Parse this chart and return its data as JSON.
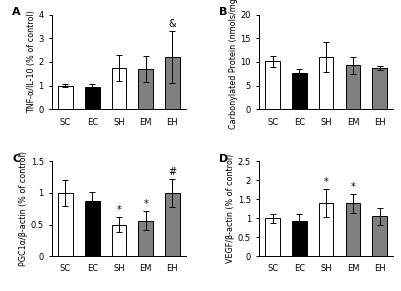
{
  "categories": [
    "SC",
    "EC",
    "SH",
    "EM",
    "EH"
  ],
  "panel_A": {
    "title": "A",
    "ylabel": "TNF-α/IL-10 (% of control)",
    "ylim": [
      0,
      4
    ],
    "yticks": [
      0,
      1,
      2,
      3,
      4
    ],
    "values": [
      1.0,
      0.95,
      1.75,
      1.7,
      2.2
    ],
    "errors": [
      0.05,
      0.12,
      0.55,
      0.55,
      1.1
    ],
    "colors": [
      "white",
      "black",
      "white",
      "#808080",
      "#808080"
    ],
    "sig_labels": [
      "",
      "",
      "",
      "",
      "&"
    ]
  },
  "panel_B": {
    "title": "B",
    "ylabel": "Carbonylated Protein (nmols/mg)",
    "ylim": [
      0,
      20
    ],
    "yticks": [
      0,
      5,
      10,
      15,
      20
    ],
    "values": [
      10.1,
      7.6,
      11.0,
      9.3,
      8.7
    ],
    "errors": [
      1.2,
      0.8,
      3.2,
      1.8,
      0.5
    ],
    "colors": [
      "white",
      "black",
      "white",
      "#808080",
      "#808080"
    ],
    "sig_labels": [
      "",
      "",
      "",
      "",
      ""
    ]
  },
  "panel_C": {
    "title": "C",
    "ylabel": "PGC1α/β-actin (% of control)",
    "ylim": [
      0,
      1.5
    ],
    "yticks": [
      0.0,
      0.5,
      1.0,
      1.5
    ],
    "values": [
      1.0,
      0.87,
      0.5,
      0.56,
      1.0
    ],
    "errors": [
      0.2,
      0.15,
      0.12,
      0.15,
      0.22
    ],
    "colors": [
      "white",
      "black",
      "white",
      "#808080",
      "#808080"
    ],
    "sig_labels": [
      "",
      "",
      "*",
      "*",
      "#"
    ]
  },
  "panel_D": {
    "title": "D",
    "ylabel": "VEGF/β-actin (% of control)",
    "ylim": [
      0,
      2.5
    ],
    "yticks": [
      0.0,
      0.5,
      1.0,
      1.5,
      2.0,
      2.5
    ],
    "values": [
      1.0,
      0.93,
      1.4,
      1.4,
      1.05
    ],
    "errors": [
      0.12,
      0.18,
      0.38,
      0.25,
      0.22
    ],
    "colors": [
      "white",
      "black",
      "white",
      "#808080",
      "#808080"
    ],
    "sig_labels": [
      "",
      "",
      "*",
      "*",
      ""
    ]
  },
  "bar_width": 0.55,
  "edge_color": "black",
  "edge_width": 0.7,
  "font_size": 6,
  "panel_label_size": 8,
  "ylabel_font_size": 5.8,
  "tick_font_size": 6,
  "sig_font_size": 7,
  "background": "white"
}
